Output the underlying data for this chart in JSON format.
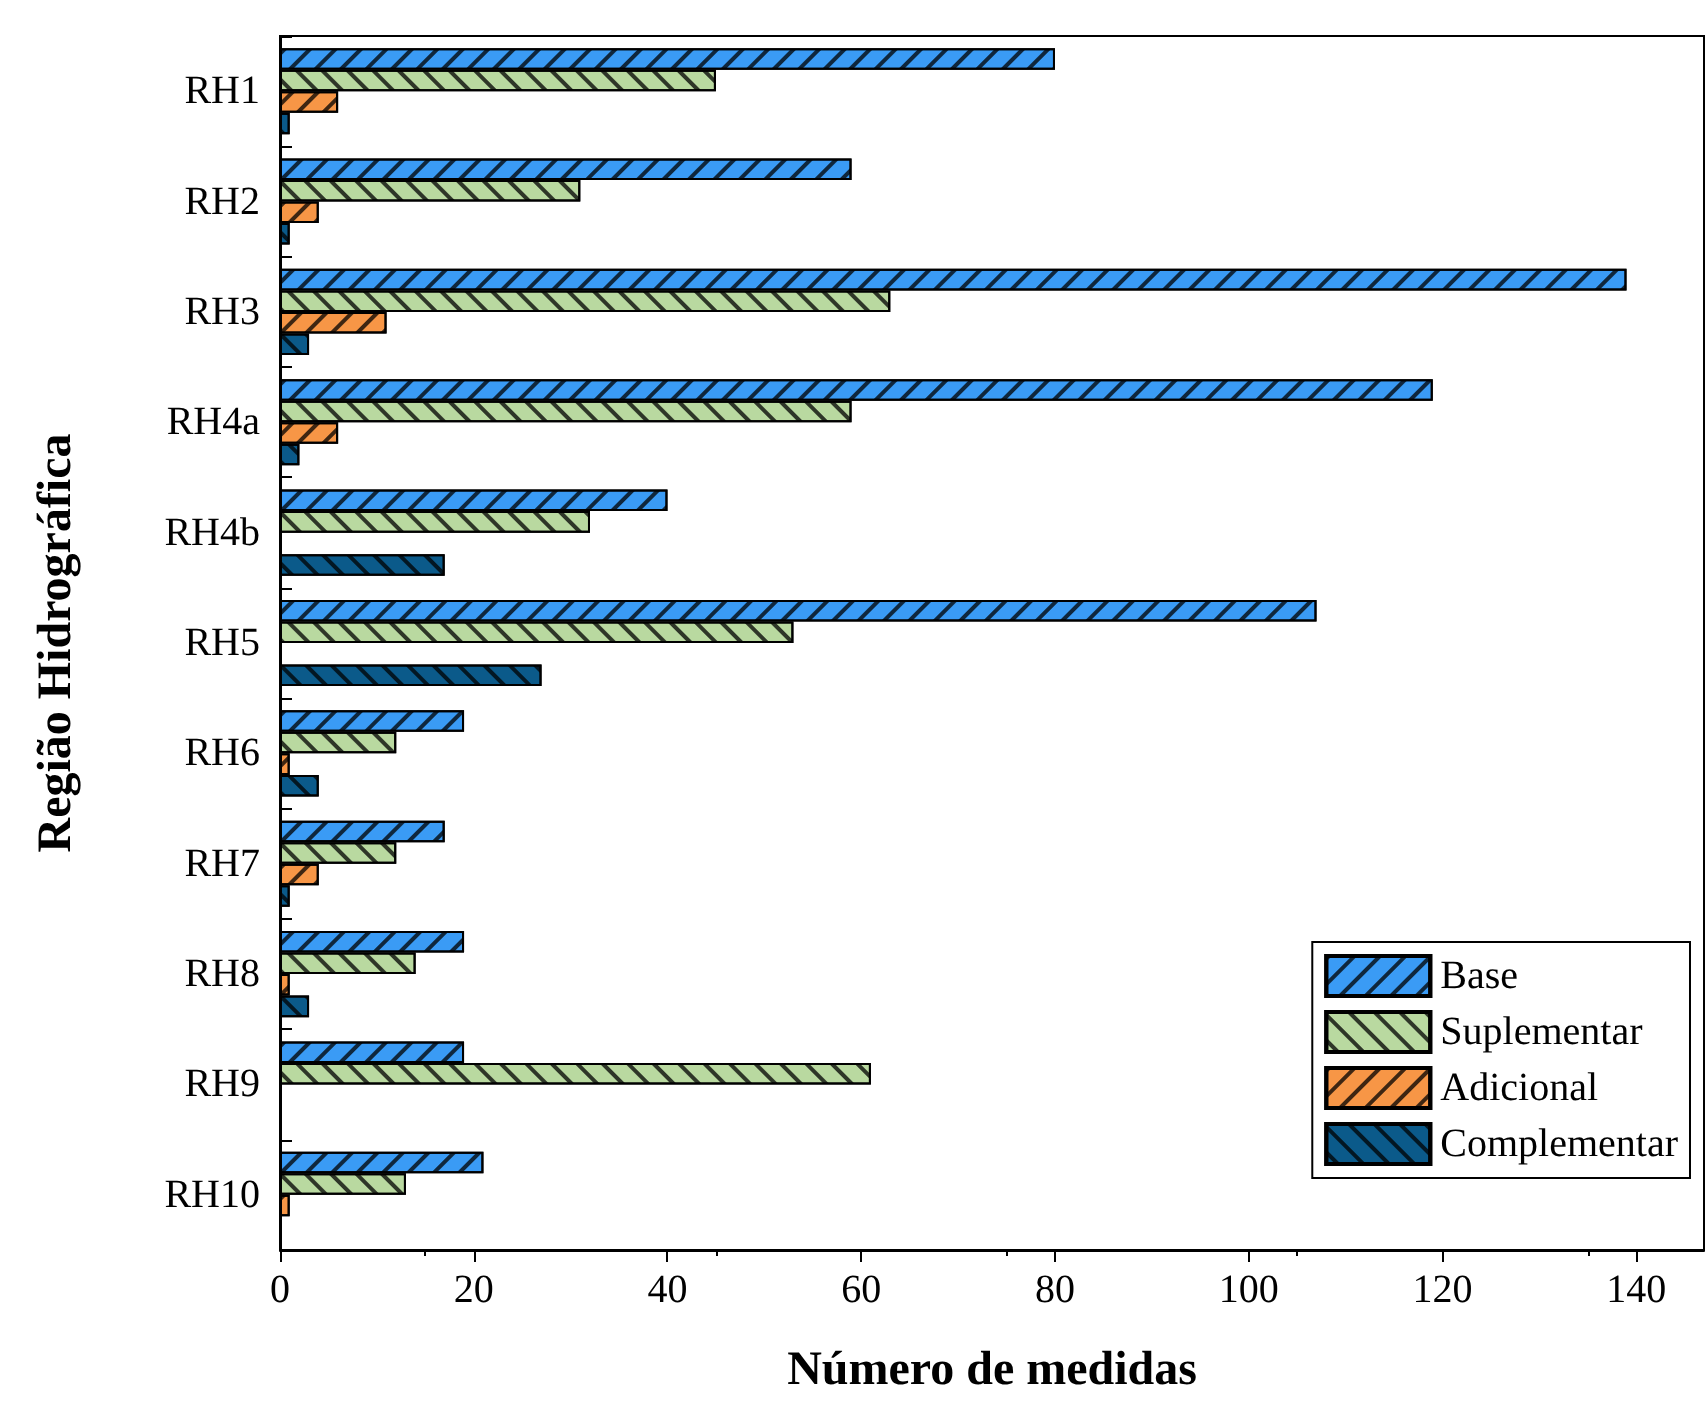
{
  "chart_data": {
    "type": "bar",
    "orientation": "horizontal",
    "xlabel": "Número de medidas",
    "ylabel": "Região Hidrográfica",
    "categories": [
      "RH1",
      "RH2",
      "RH3",
      "RH4a",
      "RH4b",
      "RH5",
      "RH6",
      "RH7",
      "RH8",
      "RH9",
      "RH10"
    ],
    "series": [
      {
        "name": "Base",
        "color": "#3a9bf5",
        "values": [
          80,
          59,
          139,
          119,
          40,
          107,
          19,
          17,
          19,
          19,
          21
        ]
      },
      {
        "name": "Suplementar",
        "color": "#b9d9a0",
        "values": [
          45,
          31,
          63,
          59,
          32,
          53,
          12,
          12,
          14,
          61,
          13
        ]
      },
      {
        "name": "Adicional",
        "color": "#f79646",
        "values": [
          6,
          4,
          11,
          6,
          null,
          null,
          1,
          4,
          1,
          null,
          1
        ]
      },
      {
        "name": "Complementar",
        "color": "#0b5a8a",
        "values": [
          1,
          1,
          3,
          2,
          17,
          27,
          4,
          1,
          3,
          null,
          null
        ]
      }
    ],
    "xlim": [
      0,
      147
    ],
    "xticks": [
      0,
      20,
      40,
      60,
      80,
      100,
      120,
      140
    ],
    "grid": false,
    "legend": "bottom right"
  }
}
